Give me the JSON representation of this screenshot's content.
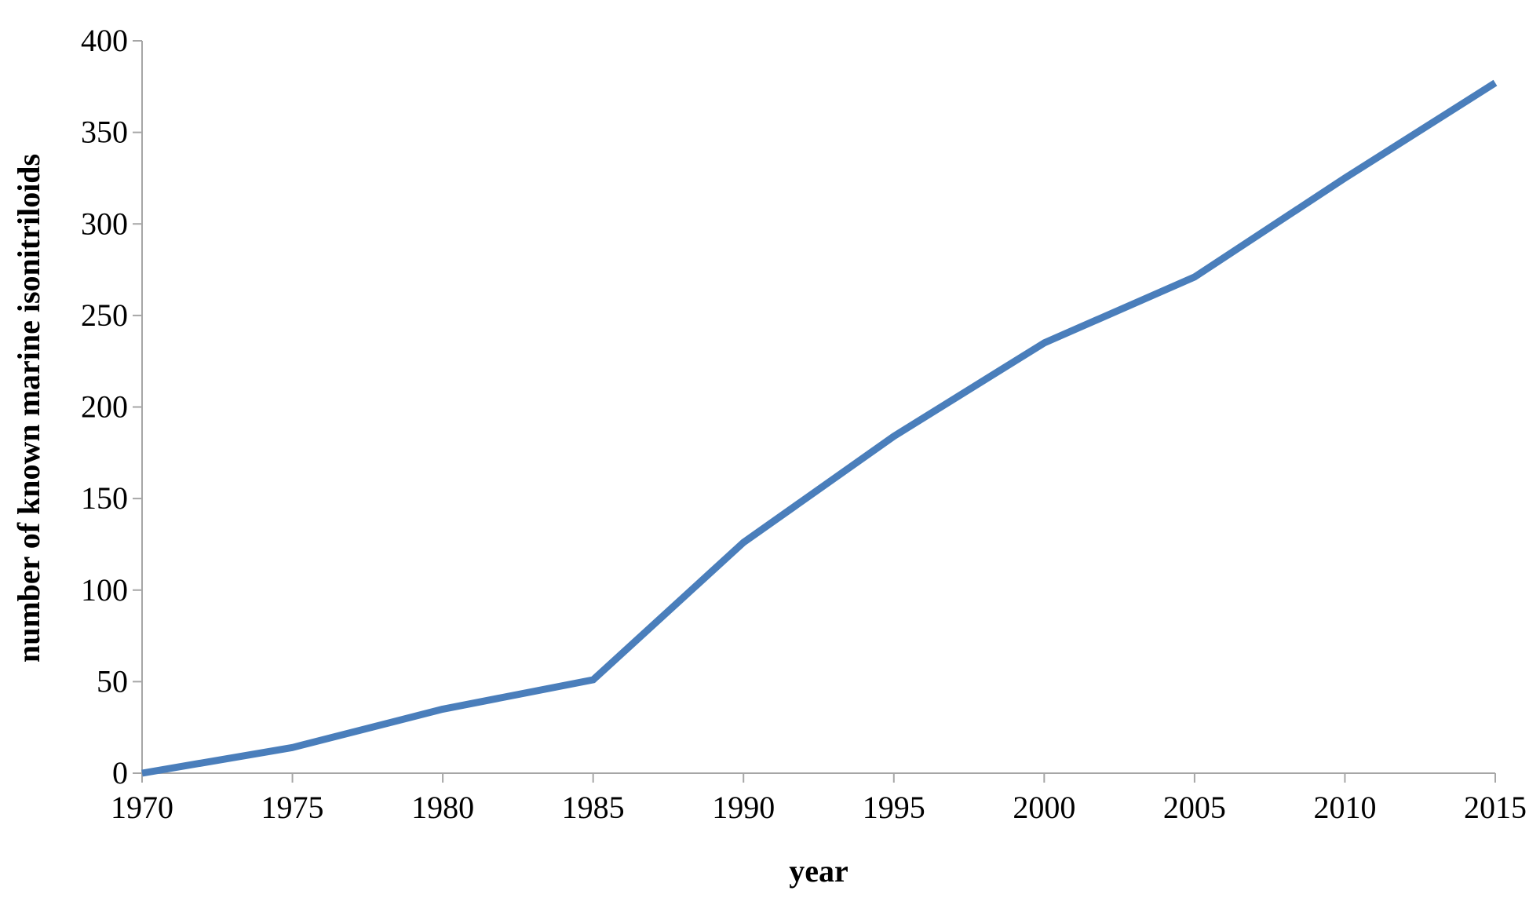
{
  "chart_data": {
    "type": "line",
    "title": "",
    "xlabel": "year",
    "ylabel": "number of known marine isonitriloids",
    "x": [
      1970,
      1975,
      1980,
      1985,
      1990,
      1995,
      2000,
      2005,
      2010,
      2015
    ],
    "xlim": [
      1970,
      2015
    ],
    "ylim": [
      0,
      400
    ],
    "y_ticks": [
      0,
      50,
      100,
      150,
      200,
      250,
      300,
      350,
      400
    ],
    "x_ticks": [
      1970,
      1975,
      1980,
      1985,
      1990,
      1995,
      2000,
      2005,
      2010,
      2015
    ],
    "series": [
      {
        "values": [
          0,
          14,
          35,
          51,
          126,
          184,
          235,
          271,
          325,
          377
        ],
        "color": "#4a7ebb"
      }
    ],
    "grid": false,
    "legend": "none",
    "axis_color": "#a6a6a6"
  }
}
